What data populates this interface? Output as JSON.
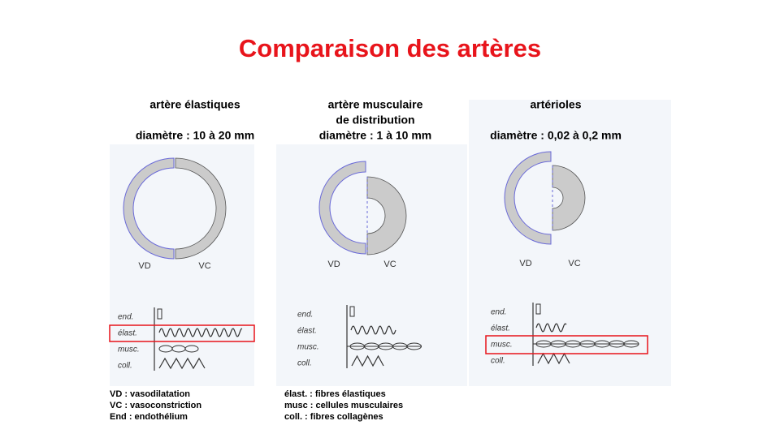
{
  "title": "Comparaison des artères",
  "columns": [
    {
      "name_lines": [
        "artère élastiques"
      ],
      "diameter": "diamètre : 10 à 20 mm",
      "labels": [
        "VD",
        "VC"
      ],
      "layers": [
        "end.",
        "élast.",
        "musc.",
        "coll."
      ]
    },
    {
      "name_lines": [
        "artère musculaire",
        "de distribution"
      ],
      "diameter": "diamètre : 1 à 10 mm",
      "labels": [
        "VD",
        "VC"
      ],
      "layers": [
        "end.",
        "élast.",
        "musc.",
        "coll."
      ]
    },
    {
      "name_lines": [
        "artérioles"
      ],
      "diameter": "diamètre : 0,02 à 0,2 mm",
      "labels": [
        "VD",
        "VC"
      ],
      "layers": [
        "end.",
        "élast.",
        "musc.",
        "coll."
      ]
    }
  ],
  "notes": [
    [
      "VD : vasodilatation",
      "VC : vasoconstriction",
      "End : endothélium"
    ],
    [
      "élast. : fibres élastiques",
      "musc : cellules musculaires",
      "coll. : fibres collagènes"
    ]
  ]
}
